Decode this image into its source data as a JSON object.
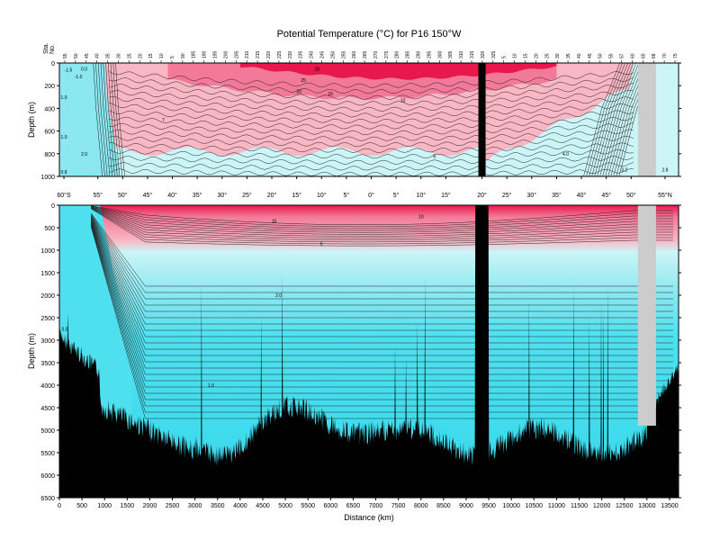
{
  "title": "Potential Temperature (°C) for P16 150°W",
  "colors": {
    "warm_dark": "#e8174c",
    "warm_mid": "#f27a98",
    "warm_light": "#f9b6c4",
    "cool_pale": "#ccf5f7",
    "cool_mid": "#8be8f0",
    "cool": "#4fe0ef",
    "cool_dark": "#35d8eb",
    "land": "#000000",
    "gap": "#cccccc"
  },
  "chart_data": {
    "type": "contour",
    "x_label": "Distance (km)",
    "x_range": [
      0,
      13700
    ],
    "x_ticks": [
      "0",
      "500",
      "1000",
      "1500",
      "2000",
      "2500",
      "3000",
      "3500",
      "4000",
      "4500",
      "5000",
      "5500",
      "6000",
      "6500",
      "7000",
      "7500",
      "8000",
      "8500",
      "9000",
      "9500",
      "10000",
      "10500",
      "11000",
      "11500",
      "12000",
      "12500",
      "13000",
      "13500"
    ],
    "x_tick_values": [
      0,
      500,
      1000,
      1500,
      2000,
      2500,
      3000,
      3500,
      4000,
      4500,
      5000,
      5500,
      6000,
      6500,
      7000,
      7500,
      8000,
      8500,
      9000,
      9500,
      10000,
      10500,
      11000,
      11500,
      12000,
      12500,
      13000,
      13500
    ],
    "latitude_ticks": [
      "60°S",
      "55°",
      "50°",
      "45°",
      "40°",
      "35°",
      "30°",
      "25°",
      "20°",
      "15°",
      "10°",
      "5°",
      "0°",
      "5°",
      "10°",
      "15°",
      "20°",
      "25°",
      "30°",
      "35°",
      "40°",
      "45°",
      "50°",
      "55°N"
    ],
    "latitude_tick_km": [
      100,
      850,
      1400,
      1950,
      2500,
      3050,
      3600,
      4150,
      4700,
      5250,
      5800,
      6350,
      6900,
      7450,
      8000,
      8550,
      9350,
      9900,
      10450,
      11000,
      11550,
      12100,
      12650,
      13400
    ],
    "station_label": "Sta.\nNo.",
    "station_ticks": [
      "55",
      "50",
      "45",
      "40",
      "35",
      "30",
      "25",
      "20",
      "15",
      "10",
      "5",
      "90",
      "185",
      "190",
      "195",
      "200",
      "205",
      "210",
      "215",
      "220",
      "225",
      "230",
      "235",
      "240",
      "245",
      "250",
      "255",
      "260",
      "265",
      "270",
      "275",
      "280",
      "285",
      "290",
      "295",
      "300",
      "305",
      "310",
      "315",
      "320",
      "325",
      "5",
      "10",
      "15",
      "20",
      "25",
      "30",
      "35",
      "40",
      "45",
      "50",
      "55",
      "57",
      "60",
      "65",
      "68",
      "70",
      "75"
    ],
    "upper_panel": {
      "y_label": "Depth (m)",
      "y_range": [
        0,
        1000
      ],
      "y_ticks": [
        "0",
        "200",
        "400",
        "600",
        "800",
        "1000"
      ],
      "y_tick_values": [
        0,
        200,
        400,
        600,
        800,
        1000
      ],
      "contour_labels": [
        {
          "text": "-1.5",
          "x": 200,
          "y": 60
        },
        {
          "text": "0.0",
          "x": 550,
          "y": 50
        },
        {
          "text": "-1.0",
          "x": 420,
          "y": 120
        },
        {
          "text": "1.0",
          "x": 100,
          "y": 300
        },
        {
          "text": "1.0",
          "x": 100,
          "y": 650
        },
        {
          "text": "2.0",
          "x": 550,
          "y": 800
        },
        {
          "text": "0.8",
          "x": 100,
          "y": 960
        },
        {
          "text": "28",
          "x": 5700,
          "y": 50
        },
        {
          "text": "25",
          "x": 5400,
          "y": 150
        },
        {
          "text": "20",
          "x": 5300,
          "y": 250
        },
        {
          "text": "15",
          "x": 6000,
          "y": 270
        },
        {
          "text": "10",
          "x": 7600,
          "y": 330
        },
        {
          "text": "7",
          "x": 2300,
          "y": 500
        },
        {
          "text": "5",
          "x": 8300,
          "y": 820
        },
        {
          "text": "4.0",
          "x": 11200,
          "y": 800
        },
        {
          "text": "3.2",
          "x": 12500,
          "y": 940
        },
        {
          "text": "2.8",
          "x": 13400,
          "y": 940
        }
      ]
    },
    "lower_panel": {
      "y_label": "Depth (m)",
      "y_range": [
        0,
        6500
      ],
      "y_ticks": [
        "0",
        "500",
        "1000",
        "1500",
        "2000",
        "2500",
        "3000",
        "3500",
        "4000",
        "4500",
        "5000",
        "5500",
        "6000",
        "6500"
      ],
      "y_tick_values": [
        0,
        500,
        1000,
        1500,
        2000,
        2500,
        3000,
        3500,
        4000,
        4500,
        5000,
        5500,
        6000,
        6500
      ],
      "contour_labels": [
        {
          "text": "15",
          "x": 4750,
          "y": 350
        },
        {
          "text": "10",
          "x": 8000,
          "y": 250
        },
        {
          "text": "5",
          "x": 5800,
          "y": 850
        },
        {
          "text": "2.0",
          "x": 4850,
          "y": 2000
        },
        {
          "text": "1.0",
          "x": 3350,
          "y": 4000
        },
        {
          "text": "0.0",
          "x": 120,
          "y": 2750
        }
      ]
    },
    "no_data_band_km": [
      12800,
      13200
    ],
    "ridge_km": 9350
  }
}
